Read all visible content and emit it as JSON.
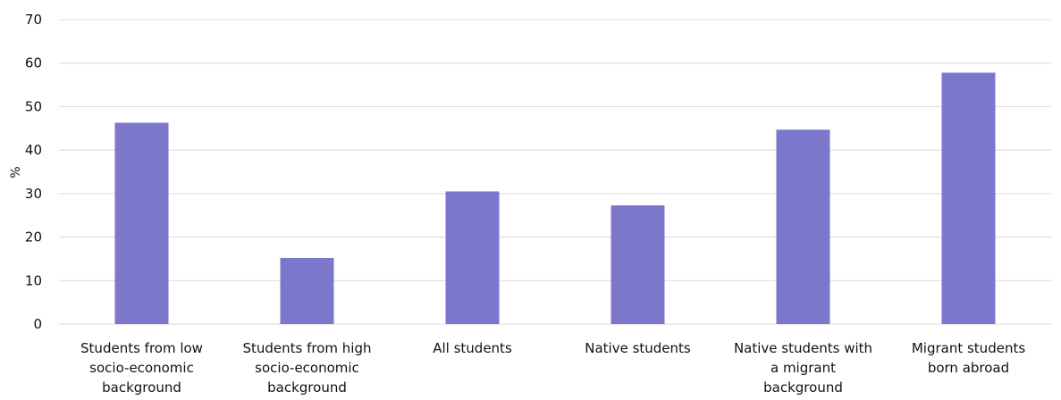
{
  "chart_data": {
    "type": "bar",
    "categories": [
      "Students from low socio-economic background",
      "Students from high socio-economic background",
      "All students",
      "Native students",
      "Native students with a migrant background",
      "Migrant students born abroad"
    ],
    "category_lines": [
      [
        "Students from low",
        "socio-economic",
        "background"
      ],
      [
        "Students from high",
        "socio-economic",
        "background"
      ],
      [
        "All students"
      ],
      [
        "Native students"
      ],
      [
        "Native students with",
        "a migrant",
        "background"
      ],
      [
        "Migrant students",
        "born abroad"
      ]
    ],
    "values": [
      46.3,
      15.2,
      30.5,
      27.3,
      44.7,
      57.8
    ],
    "title": "",
    "xlabel": "",
    "ylabel": "%",
    "ylim": [
      0,
      70
    ],
    "yticks": [
      0,
      10,
      20,
      30,
      40,
      50,
      60,
      70
    ],
    "grid": true,
    "legend": "none",
    "colors": {
      "bar": "#7b77cb",
      "grid": "#d9d9d9",
      "text": "#111111"
    }
  }
}
